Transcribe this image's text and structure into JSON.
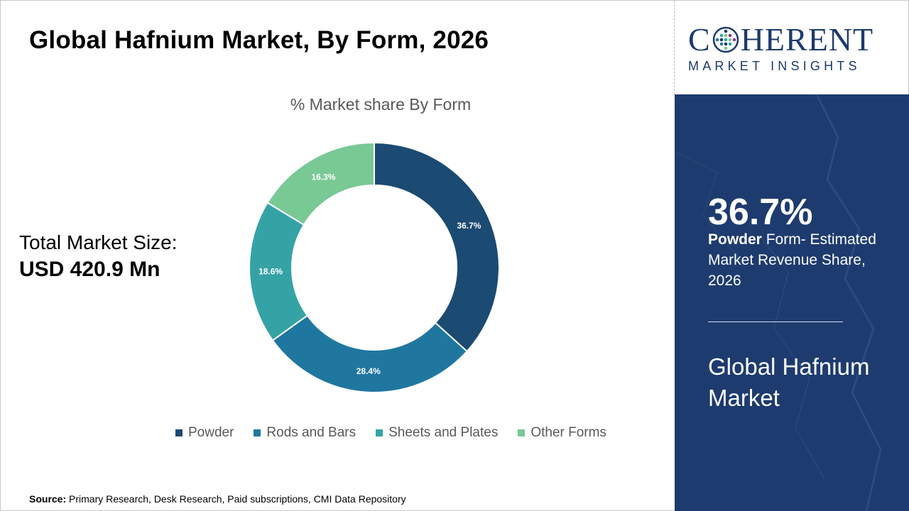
{
  "header": {
    "title": "Global Hafnium Market, By Form, 2026"
  },
  "summary": {
    "total_label": "Total Market Size:",
    "total_value": "USD 420.9 Mn"
  },
  "chart_data": {
    "type": "pie",
    "donut": true,
    "title": "% Market share By Form",
    "categories": [
      "Powder",
      "Rods and Bars",
      "Sheets and Plates",
      "Other Forms"
    ],
    "values": [
      36.7,
      28.4,
      18.6,
      16.3
    ],
    "labels": [
      "36.7%",
      "28.4%",
      "18.6%",
      "16.3%"
    ],
    "colors": [
      "#1b4a72",
      "#1f77a0",
      "#35a3a5",
      "#79c994"
    ],
    "legend_position": "bottom"
  },
  "source": {
    "label": "Source:",
    "text": " Primary Research, Desk Research, Paid subscriptions, CMI Data Repository"
  },
  "brand": {
    "logo_left": "C",
    "logo_right": "HERENT",
    "logo_sub": "MARKET INSIGHTS",
    "primary_color": "#1e3b6f"
  },
  "sidebar": {
    "stat": "36.7%",
    "desc_bold": "Powder",
    "desc_rest": " Form- Estimated Market Revenue Share, 2026",
    "market_name": "Global Hafnium Market"
  }
}
